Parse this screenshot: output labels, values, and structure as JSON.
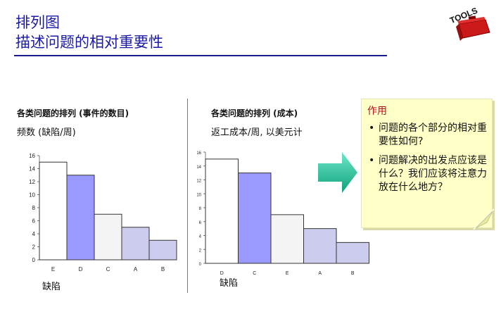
{
  "header": {
    "title_line1": "排列图",
    "title_line2": "描述问题的相对重要性",
    "logo_text": "TOOLS"
  },
  "colors": {
    "title": "#1a1aa6",
    "bar_white": "#ffffff",
    "bar_blue": "#9999ff",
    "bar_light_gray": "#f4f4f4",
    "bar_lavender": "#ccccee",
    "arrow": "#19c2a0",
    "note_bg": "#ffffc8"
  },
  "chart_data": [
    {
      "type": "bar",
      "title": "各类问题的排列 (事件的数目)",
      "ylabel": "频数 (缺陷/周)",
      "xlabel": "缺陷",
      "categories": [
        "E",
        "D",
        "C",
        "A",
        "B"
      ],
      "values": [
        15,
        13,
        7,
        5,
        3
      ],
      "ylim": [
        0,
        16
      ],
      "yticks": [
        0,
        2,
        4,
        6,
        8,
        10,
        12,
        14,
        16
      ],
      "bar_colors": [
        "#ffffff",
        "#9999ff",
        "#f4f4f4",
        "#ccccee",
        "#ccccee"
      ],
      "grid": false
    },
    {
      "type": "bar",
      "title": "各类问题的排列 (成本)",
      "ylabel": "返工成本/周, 以美元计",
      "xlabel": "缺陷",
      "categories": [
        "D",
        "C",
        "E",
        "A",
        "B"
      ],
      "values": [
        15,
        13,
        7,
        5,
        3
      ],
      "ylim": [
        0,
        16
      ],
      "yticks": [
        0,
        2,
        4,
        6,
        8,
        10,
        12,
        14,
        16
      ],
      "bar_colors": [
        "#ffffff",
        "#9999ff",
        "#f4f4f4",
        "#ccccee",
        "#ccccee"
      ],
      "grid": false
    }
  ],
  "note": {
    "heading": "作用",
    "items": [
      "问题的各个部分的相对重要性如何?",
      "问题解决的出发点应该是什么？我们应该将注意力放在什么地方？"
    ]
  }
}
